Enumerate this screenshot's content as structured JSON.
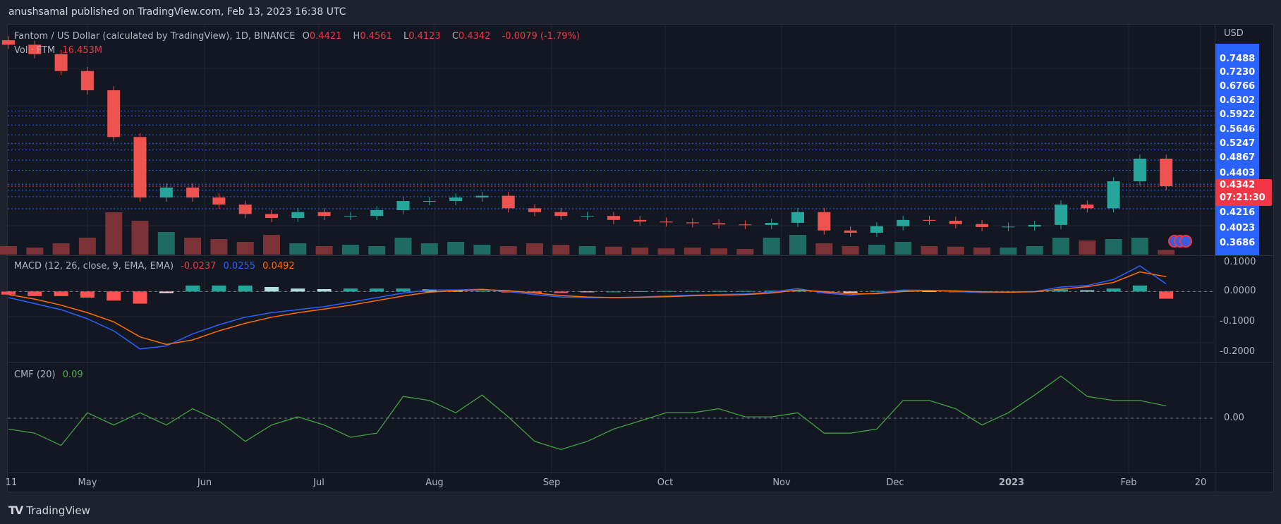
{
  "header": {
    "text": "anushsamal published on TradingView.com, Feb 13, 2023 16:38 UTC"
  },
  "legend": {
    "symbol": "Fantom / US Dollar (calculated by TradingView), 1D, BINANCE",
    "open_label": "O",
    "open": "0.4421",
    "high_label": "H",
    "high": "0.4561",
    "low_label": "L",
    "low": "0.4123",
    "close_label": "C",
    "close": "0.4342",
    "change": "-0.0079 (-1.79%)",
    "volume_label": "Vol · FTM",
    "volume": "16.453M"
  },
  "macd_legend": {
    "title": "MACD (12, 26, close, 9, EMA, EMA)",
    "histogram": "-0.0237",
    "macd": "0.0255",
    "signal": "0.0492"
  },
  "cmf_legend": {
    "title": "CMF (20)",
    "value": "0.09"
  },
  "price_axis": {
    "currency": "USD",
    "levels": [
      "0.7488",
      "0.7230",
      "0.6766",
      "0.6302",
      "0.5922",
      "0.5646",
      "0.5247",
      "0.4867",
      "0.4403",
      "0.4216",
      "0.4023",
      "0.3686"
    ],
    "current_price": "0.4342",
    "countdown": "07:21:30"
  },
  "macd_axis": [
    "0.1000",
    "0.0000",
    "-0.1000",
    "-0.2000"
  ],
  "cmf_axis": [
    "0.00"
  ],
  "time_axis": [
    "11",
    "May",
    "Jun",
    "Jul",
    "Aug",
    "Sep",
    "Oct",
    "Nov",
    "Dec",
    "2023",
    "Feb",
    "20"
  ],
  "footer": {
    "logo": "TV",
    "brand": "TradingView"
  },
  "colors": {
    "up": "#26a69a",
    "down": "#ef5350",
    "macd": "#2962ff",
    "signal": "#ff6d00",
    "cmf": "#43a047",
    "levels": "#2962ff",
    "current": "#f23645"
  },
  "chart_data": [
    {
      "type": "candlestick",
      "title": "Fantom / US Dollar (calculated by TradingView), 1D, BINANCE",
      "scale": "log",
      "x_start": "2022-04-11",
      "x_step_days": 7,
      "close": [
        1.21,
        1.13,
        1.0,
        0.87,
        0.62,
        0.4,
        0.43,
        0.4,
        0.38,
        0.355,
        0.345,
        0.36,
        0.35,
        0.35,
        0.365,
        0.39,
        0.39,
        0.4,
        0.405,
        0.37,
        0.36,
        0.35,
        0.35,
        0.34,
        0.336,
        0.334,
        0.332,
        0.329,
        0.328,
        0.333,
        0.36,
        0.315,
        0.31,
        0.325,
        0.34,
        0.338,
        0.33,
        0.323,
        0.324,
        0.328,
        0.38,
        0.37,
        0.45,
        0.53,
        0.4342
      ],
      "volume_m": [
        30,
        25,
        40,
        60,
        150,
        120,
        80,
        60,
        55,
        45,
        70,
        40,
        30,
        35,
        30,
        60,
        40,
        45,
        35,
        30,
        40,
        35,
        30,
        28,
        25,
        22,
        25,
        22,
        20,
        60,
        70,
        40,
        30,
        35,
        45,
        30,
        28,
        25,
        25,
        30,
        60,
        50,
        55,
        60,
        16.453
      ],
      "horizontal_levels": [
        0.7488,
        0.723,
        0.6766,
        0.6302,
        0.5922,
        0.5646,
        0.5247,
        0.4867,
        0.4403,
        0.4216,
        0.4023,
        0.3686
      ]
    },
    {
      "type": "line",
      "title": "MACD (12, 26, close, 9, EMA, EMA)",
      "ylim": [
        -0.2,
        0.1
      ],
      "series": [
        {
          "name": "MACD",
          "values": [
            -0.02,
            -0.04,
            -0.06,
            -0.09,
            -0.13,
            -0.19,
            -0.18,
            -0.14,
            -0.11,
            -0.085,
            -0.07,
            -0.06,
            -0.05,
            -0.035,
            -0.02,
            -0.005,
            0.005,
            0.005,
            0.008,
            0.0,
            -0.01,
            -0.018,
            -0.02,
            -0.02,
            -0.018,
            -0.015,
            -0.012,
            -0.01,
            -0.008,
            -0.002,
            0.01,
            -0.005,
            -0.012,
            -0.005,
            0.005,
            0.004,
            0.0,
            -0.003,
            -0.002,
            0.0,
            0.015,
            0.02,
            0.04,
            0.085,
            0.0255
          ]
        },
        {
          "name": "Signal",
          "values": [
            -0.01,
            -0.025,
            -0.045,
            -0.07,
            -0.1,
            -0.15,
            -0.175,
            -0.16,
            -0.13,
            -0.105,
            -0.085,
            -0.07,
            -0.058,
            -0.045,
            -0.03,
            -0.015,
            -0.002,
            0.003,
            0.006,
            0.003,
            -0.005,
            -0.013,
            -0.018,
            -0.02,
            -0.019,
            -0.017,
            -0.014,
            -0.012,
            -0.01,
            -0.005,
            0.005,
            0.0,
            -0.008,
            -0.007,
            0.0,
            0.003,
            0.002,
            -0.001,
            -0.002,
            -0.001,
            0.008,
            0.016,
            0.03,
            0.065,
            0.0492
          ]
        },
        {
          "name": "Histogram",
          "values": [
            -0.01,
            -0.015,
            -0.015,
            -0.02,
            -0.03,
            -0.04,
            -0.005,
            0.02,
            0.02,
            0.02,
            0.015,
            0.01,
            0.008,
            0.01,
            0.01,
            0.01,
            0.007,
            0.002,
            0.002,
            -0.003,
            -0.005,
            -0.005,
            -0.002,
            0.0,
            0.001,
            0.002,
            0.002,
            0.002,
            0.002,
            0.003,
            0.005,
            -0.005,
            -0.004,
            0.002,
            0.005,
            0.001,
            -0.002,
            -0.002,
            0.0,
            0.001,
            0.007,
            0.004,
            0.01,
            0.02,
            -0.0237
          ]
        }
      ]
    },
    {
      "type": "line",
      "title": "CMF (20)",
      "series": [
        {
          "name": "CMF",
          "values": [
            -0.08,
            -0.11,
            -0.2,
            0.04,
            -0.05,
            0.04,
            -0.05,
            0.07,
            -0.02,
            -0.17,
            -0.05,
            0.01,
            -0.05,
            -0.14,
            -0.11,
            0.16,
            0.13,
            0.04,
            0.17,
            0.01,
            -0.17,
            -0.23,
            -0.17,
            -0.08,
            -0.02,
            0.04,
            0.04,
            0.07,
            0.01,
            0.01,
            0.04,
            -0.11,
            -0.11,
            -0.08,
            0.13,
            0.13,
            0.07,
            -0.05,
            0.04,
            0.17,
            0.31,
            0.16,
            0.13,
            0.13,
            0.09
          ]
        }
      ]
    }
  ]
}
